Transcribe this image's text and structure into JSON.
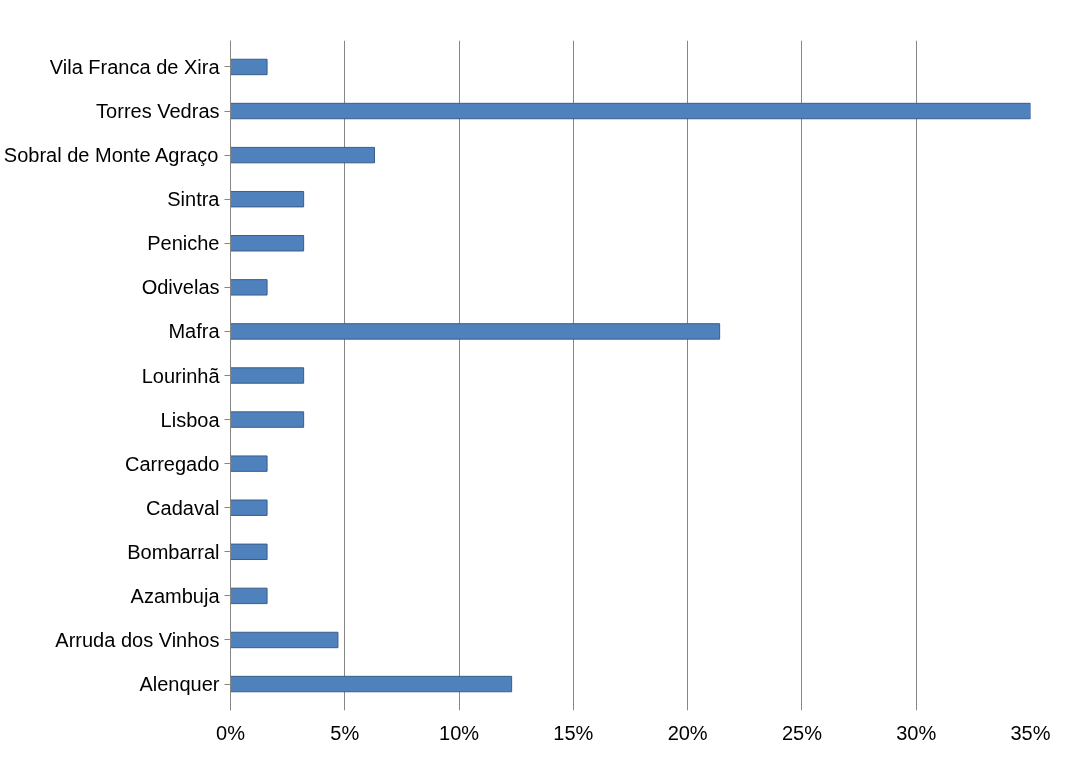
{
  "chart_data": {
    "type": "bar",
    "orientation": "horizontal",
    "categories": [
      "Vila Franca de Xira",
      "Torres Vedras",
      "Sobral de Monte Agraço",
      "Sintra",
      "Peniche",
      "Odivelas",
      "Mafra",
      "Lourinhã",
      "Lisboa",
      "Carregado",
      "Cadaval",
      "Bombarral",
      "Azambuja",
      "Arruda dos Vinhos",
      "Alenquer"
    ],
    "values": [
      1.6,
      35,
      6.3,
      3.2,
      3.2,
      1.6,
      21.4,
      3.2,
      3.2,
      1.6,
      1.6,
      1.6,
      1.6,
      4.7,
      12.3
    ],
    "color": "#4f81bd",
    "xlim": [
      0,
      35
    ],
    "xticks": [
      {
        "value": 0,
        "label": "0%"
      },
      {
        "value": 5,
        "label": "5%"
      },
      {
        "value": 10,
        "label": "10%"
      },
      {
        "value": 15,
        "label": "15%"
      },
      {
        "value": 20,
        "label": "20%"
      },
      {
        "value": 25,
        "label": "25%"
      },
      {
        "value": 30,
        "label": "30%"
      },
      {
        "value": 35,
        "label": "35%"
      }
    ],
    "grid": "x"
  }
}
